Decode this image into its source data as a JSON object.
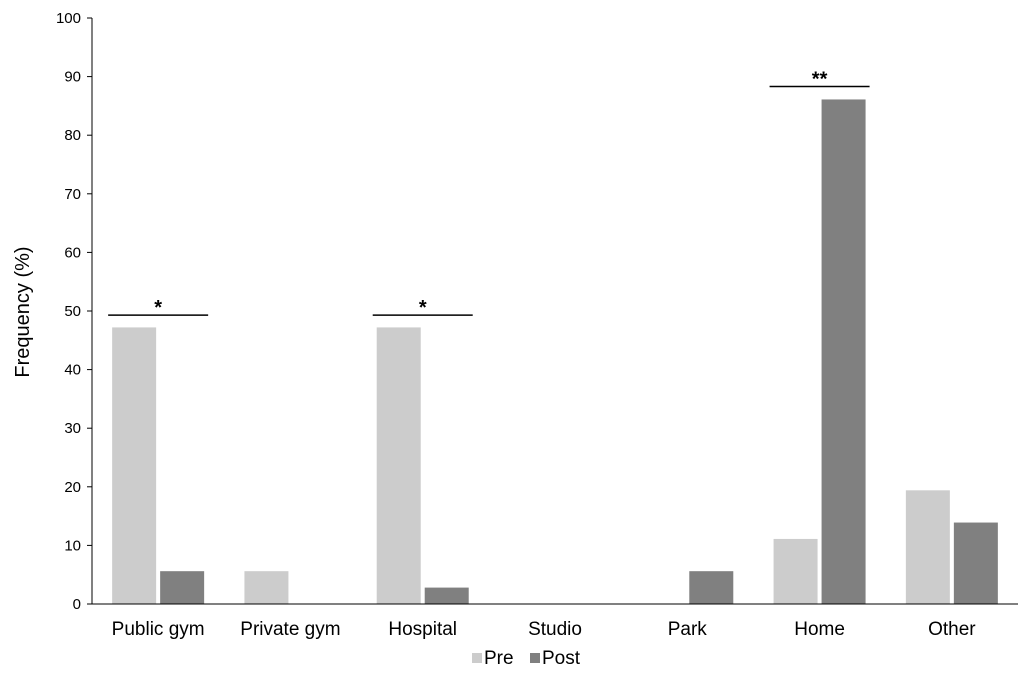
{
  "chart_data": {
    "type": "bar",
    "ylabel": "Frequency (%)",
    "ylim": [
      0,
      100
    ],
    "yticks": [
      "0",
      "10",
      "20",
      "30",
      "40",
      "50",
      "60",
      "70",
      "80",
      "90",
      "100"
    ],
    "categories": [
      "Public gym",
      "Private gym",
      "Hospital",
      "Studio",
      "Park",
      "Home",
      "Other"
    ],
    "series": [
      {
        "name": "Pre",
        "color": "#cccccc",
        "values": [
          47.2,
          5.6,
          47.2,
          0,
          0,
          11.1,
          19.4
        ]
      },
      {
        "name": "Post",
        "color": "#808080",
        "values": [
          5.6,
          0,
          2.8,
          0,
          5.6,
          86.1,
          13.9
        ]
      }
    ],
    "legend": {
      "placement": "bottom-center",
      "items": [
        "Pre",
        "Post"
      ]
    },
    "significance": [
      {
        "category": "Public gym",
        "label": "*",
        "level": 49.3
      },
      {
        "category": "Hospital",
        "label": "*",
        "level": 49.3
      },
      {
        "category": "Home",
        "label": "**",
        "level": 88.3
      }
    ],
    "grid": false
  }
}
